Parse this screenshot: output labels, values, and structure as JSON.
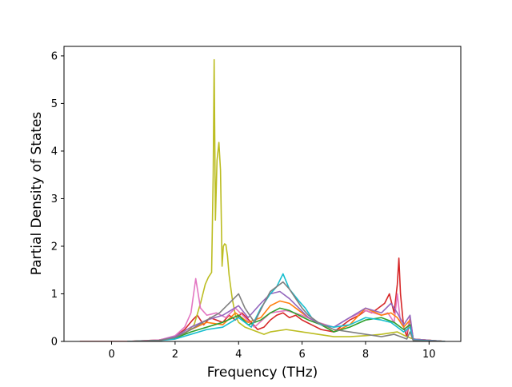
{
  "chart_data": {
    "type": "line",
    "title": "",
    "xlabel": "Frequency (THz)",
    "ylabel": "Partial Density of States",
    "xlim": [
      -1.5,
      11.0
    ],
    "ylim": [
      0,
      6.2
    ],
    "xticks": [
      "0",
      "2",
      "4",
      "6",
      "8",
      "10"
    ],
    "yticks": [
      "0",
      "1",
      "2",
      "3",
      "4",
      "5",
      "6"
    ],
    "grid": false,
    "legend": "none",
    "series": [
      {
        "color": "#d62728",
        "x": [
          -1.0,
          0.5,
          1.5,
          2.0,
          2.3,
          2.55,
          2.7,
          2.9,
          3.1,
          3.3,
          3.5,
          3.7,
          3.9,
          4.1,
          4.4,
          4.6,
          4.8,
          5.0,
          5.2,
          5.4,
          5.6,
          5.8,
          6.0,
          6.3,
          6.6,
          7.0,
          7.3,
          7.5,
          7.8,
          8.0,
          8.2,
          8.4,
          8.6,
          8.75,
          8.9,
          9.0,
          9.05,
          9.1,
          9.2,
          9.3,
          9.4,
          9.5,
          10.5
        ],
        "y": [
          0.0,
          0.0,
          0.03,
          0.1,
          0.25,
          0.45,
          0.55,
          0.35,
          0.5,
          0.45,
          0.4,
          0.55,
          0.45,
          0.6,
          0.4,
          0.25,
          0.3,
          0.45,
          0.55,
          0.6,
          0.5,
          0.55,
          0.45,
          0.35,
          0.25,
          0.2,
          0.35,
          0.45,
          0.55,
          0.65,
          0.6,
          0.7,
          0.8,
          1.0,
          0.6,
          1.2,
          1.75,
          1.0,
          0.3,
          0.1,
          0.5,
          0.05,
          0.0
        ]
      },
      {
        "color": "#bcbd22",
        "x": [
          0.5,
          1.5,
          2.0,
          2.3,
          2.6,
          2.8,
          2.95,
          3.05,
          3.15,
          3.2,
          3.23,
          3.27,
          3.32,
          3.38,
          3.43,
          3.48,
          3.52,
          3.56,
          3.6,
          3.65,
          3.7,
          3.8,
          3.9,
          4.0,
          4.2,
          4.4,
          4.6,
          4.8,
          5.0,
          5.5,
          6.0,
          6.5,
          7.0,
          7.5,
          8.0,
          8.5,
          9.0,
          9.3,
          9.5,
          10.5
        ],
        "y": [
          0.0,
          0.02,
          0.07,
          0.15,
          0.35,
          0.8,
          1.2,
          1.35,
          1.45,
          3.5,
          5.92,
          2.55,
          3.8,
          4.18,
          3.6,
          1.58,
          2.0,
          2.05,
          2.03,
          1.8,
          1.4,
          0.9,
          0.55,
          0.4,
          0.3,
          0.25,
          0.2,
          0.15,
          0.2,
          0.25,
          0.2,
          0.15,
          0.1,
          0.1,
          0.12,
          0.15,
          0.2,
          0.1,
          0.05,
          0.0
        ]
      },
      {
        "color": "#e377c2",
        "x": [
          0.5,
          1.5,
          2.0,
          2.3,
          2.5,
          2.65,
          2.8,
          3.0,
          3.3,
          3.6,
          3.9,
          4.2,
          4.5,
          5.0,
          5.5,
          6.0,
          6.5,
          7.0,
          7.5,
          8.0,
          8.5,
          8.7,
          8.9,
          9.0,
          9.1,
          9.3,
          9.4,
          9.5,
          10.5
        ],
        "y": [
          0.0,
          0.03,
          0.12,
          0.3,
          0.6,
          1.32,
          0.7,
          0.55,
          0.6,
          0.5,
          0.7,
          0.5,
          0.3,
          0.6,
          0.65,
          0.55,
          0.4,
          0.3,
          0.5,
          0.65,
          0.55,
          0.6,
          0.4,
          1.0,
          0.4,
          0.2,
          0.5,
          0.05,
          0.0
        ]
      },
      {
        "color": "#ff7f0e",
        "x": [
          0.5,
          1.5,
          2.0,
          2.5,
          3.0,
          3.5,
          3.9,
          4.3,
          4.7,
          5.0,
          5.3,
          5.6,
          5.9,
          6.2,
          6.6,
          7.0,
          7.5,
          8.0,
          8.5,
          8.8,
          9.0,
          9.2,
          9.4,
          9.5,
          10.5
        ],
        "y": [
          0.0,
          0.02,
          0.08,
          0.25,
          0.4,
          0.35,
          0.6,
          0.4,
          0.5,
          0.75,
          0.85,
          0.8,
          0.65,
          0.5,
          0.35,
          0.2,
          0.35,
          0.7,
          0.55,
          0.6,
          0.5,
          0.3,
          0.45,
          0.05,
          0.0
        ]
      },
      {
        "color": "#2ca02c",
        "x": [
          0.5,
          1.5,
          2.0,
          2.5,
          3.0,
          3.5,
          4.0,
          4.3,
          4.7,
          5.0,
          5.3,
          5.6,
          5.9,
          6.2,
          6.6,
          7.0,
          7.5,
          8.0,
          8.5,
          8.9,
          9.2,
          9.4,
          9.5,
          10.5
        ],
        "y": [
          0.0,
          0.02,
          0.07,
          0.2,
          0.3,
          0.4,
          0.55,
          0.35,
          0.45,
          0.6,
          0.7,
          0.65,
          0.55,
          0.45,
          0.35,
          0.2,
          0.3,
          0.45,
          0.5,
          0.4,
          0.25,
          0.35,
          0.04,
          0.0
        ]
      },
      {
        "color": "#9467bd",
        "x": [
          0.5,
          1.5,
          2.0,
          2.5,
          3.0,
          3.5,
          4.0,
          4.3,
          4.7,
          5.0,
          5.3,
          5.6,
          5.9,
          6.2,
          6.6,
          7.0,
          7.5,
          8.0,
          8.5,
          8.8,
          9.0,
          9.2,
          9.4,
          9.5,
          10.5
        ],
        "y": [
          0.0,
          0.02,
          0.1,
          0.3,
          0.45,
          0.55,
          0.75,
          0.5,
          0.8,
          1.0,
          1.05,
          0.9,
          0.7,
          0.5,
          0.35,
          0.3,
          0.5,
          0.7,
          0.6,
          0.8,
          0.6,
          0.35,
          0.55,
          0.05,
          0.0
        ]
      },
      {
        "color": "#17becf",
        "x": [
          0.5,
          1.5,
          2.0,
          2.5,
          3.0,
          3.5,
          4.0,
          4.4,
          4.7,
          5.0,
          5.2,
          5.4,
          5.6,
          5.9,
          6.1,
          6.3,
          6.6,
          7.0,
          7.5,
          8.0,
          8.5,
          8.8,
          9.0,
          9.2,
          9.4,
          9.5,
          10.5
        ],
        "y": [
          0.0,
          0.02,
          0.05,
          0.15,
          0.25,
          0.3,
          0.5,
          0.3,
          0.7,
          1.0,
          1.15,
          1.42,
          1.1,
          0.85,
          0.7,
          0.5,
          0.35,
          0.3,
          0.35,
          0.5,
          0.45,
          0.4,
          0.3,
          0.2,
          0.3,
          0.03,
          0.0
        ]
      },
      {
        "color": "#7f7f7f",
        "x": [
          0.5,
          1.5,
          2.0,
          2.5,
          3.0,
          3.4,
          3.7,
          4.0,
          4.2,
          4.5,
          4.8,
          5.0,
          5.2,
          5.4,
          5.6,
          5.8,
          6.0,
          6.2,
          6.5,
          7.0,
          7.5,
          8.0,
          8.5,
          8.9,
          9.1,
          9.3,
          9.4,
          9.5,
          10.5
        ],
        "y": [
          0.0,
          0.02,
          0.08,
          0.25,
          0.45,
          0.6,
          0.8,
          1.0,
          0.7,
          0.4,
          0.8,
          1.05,
          1.15,
          1.25,
          1.1,
          0.9,
          0.7,
          0.55,
          0.4,
          0.25,
          0.2,
          0.15,
          0.1,
          0.15,
          0.1,
          0.05,
          0.2,
          0.02,
          0.0
        ]
      }
    ]
  }
}
